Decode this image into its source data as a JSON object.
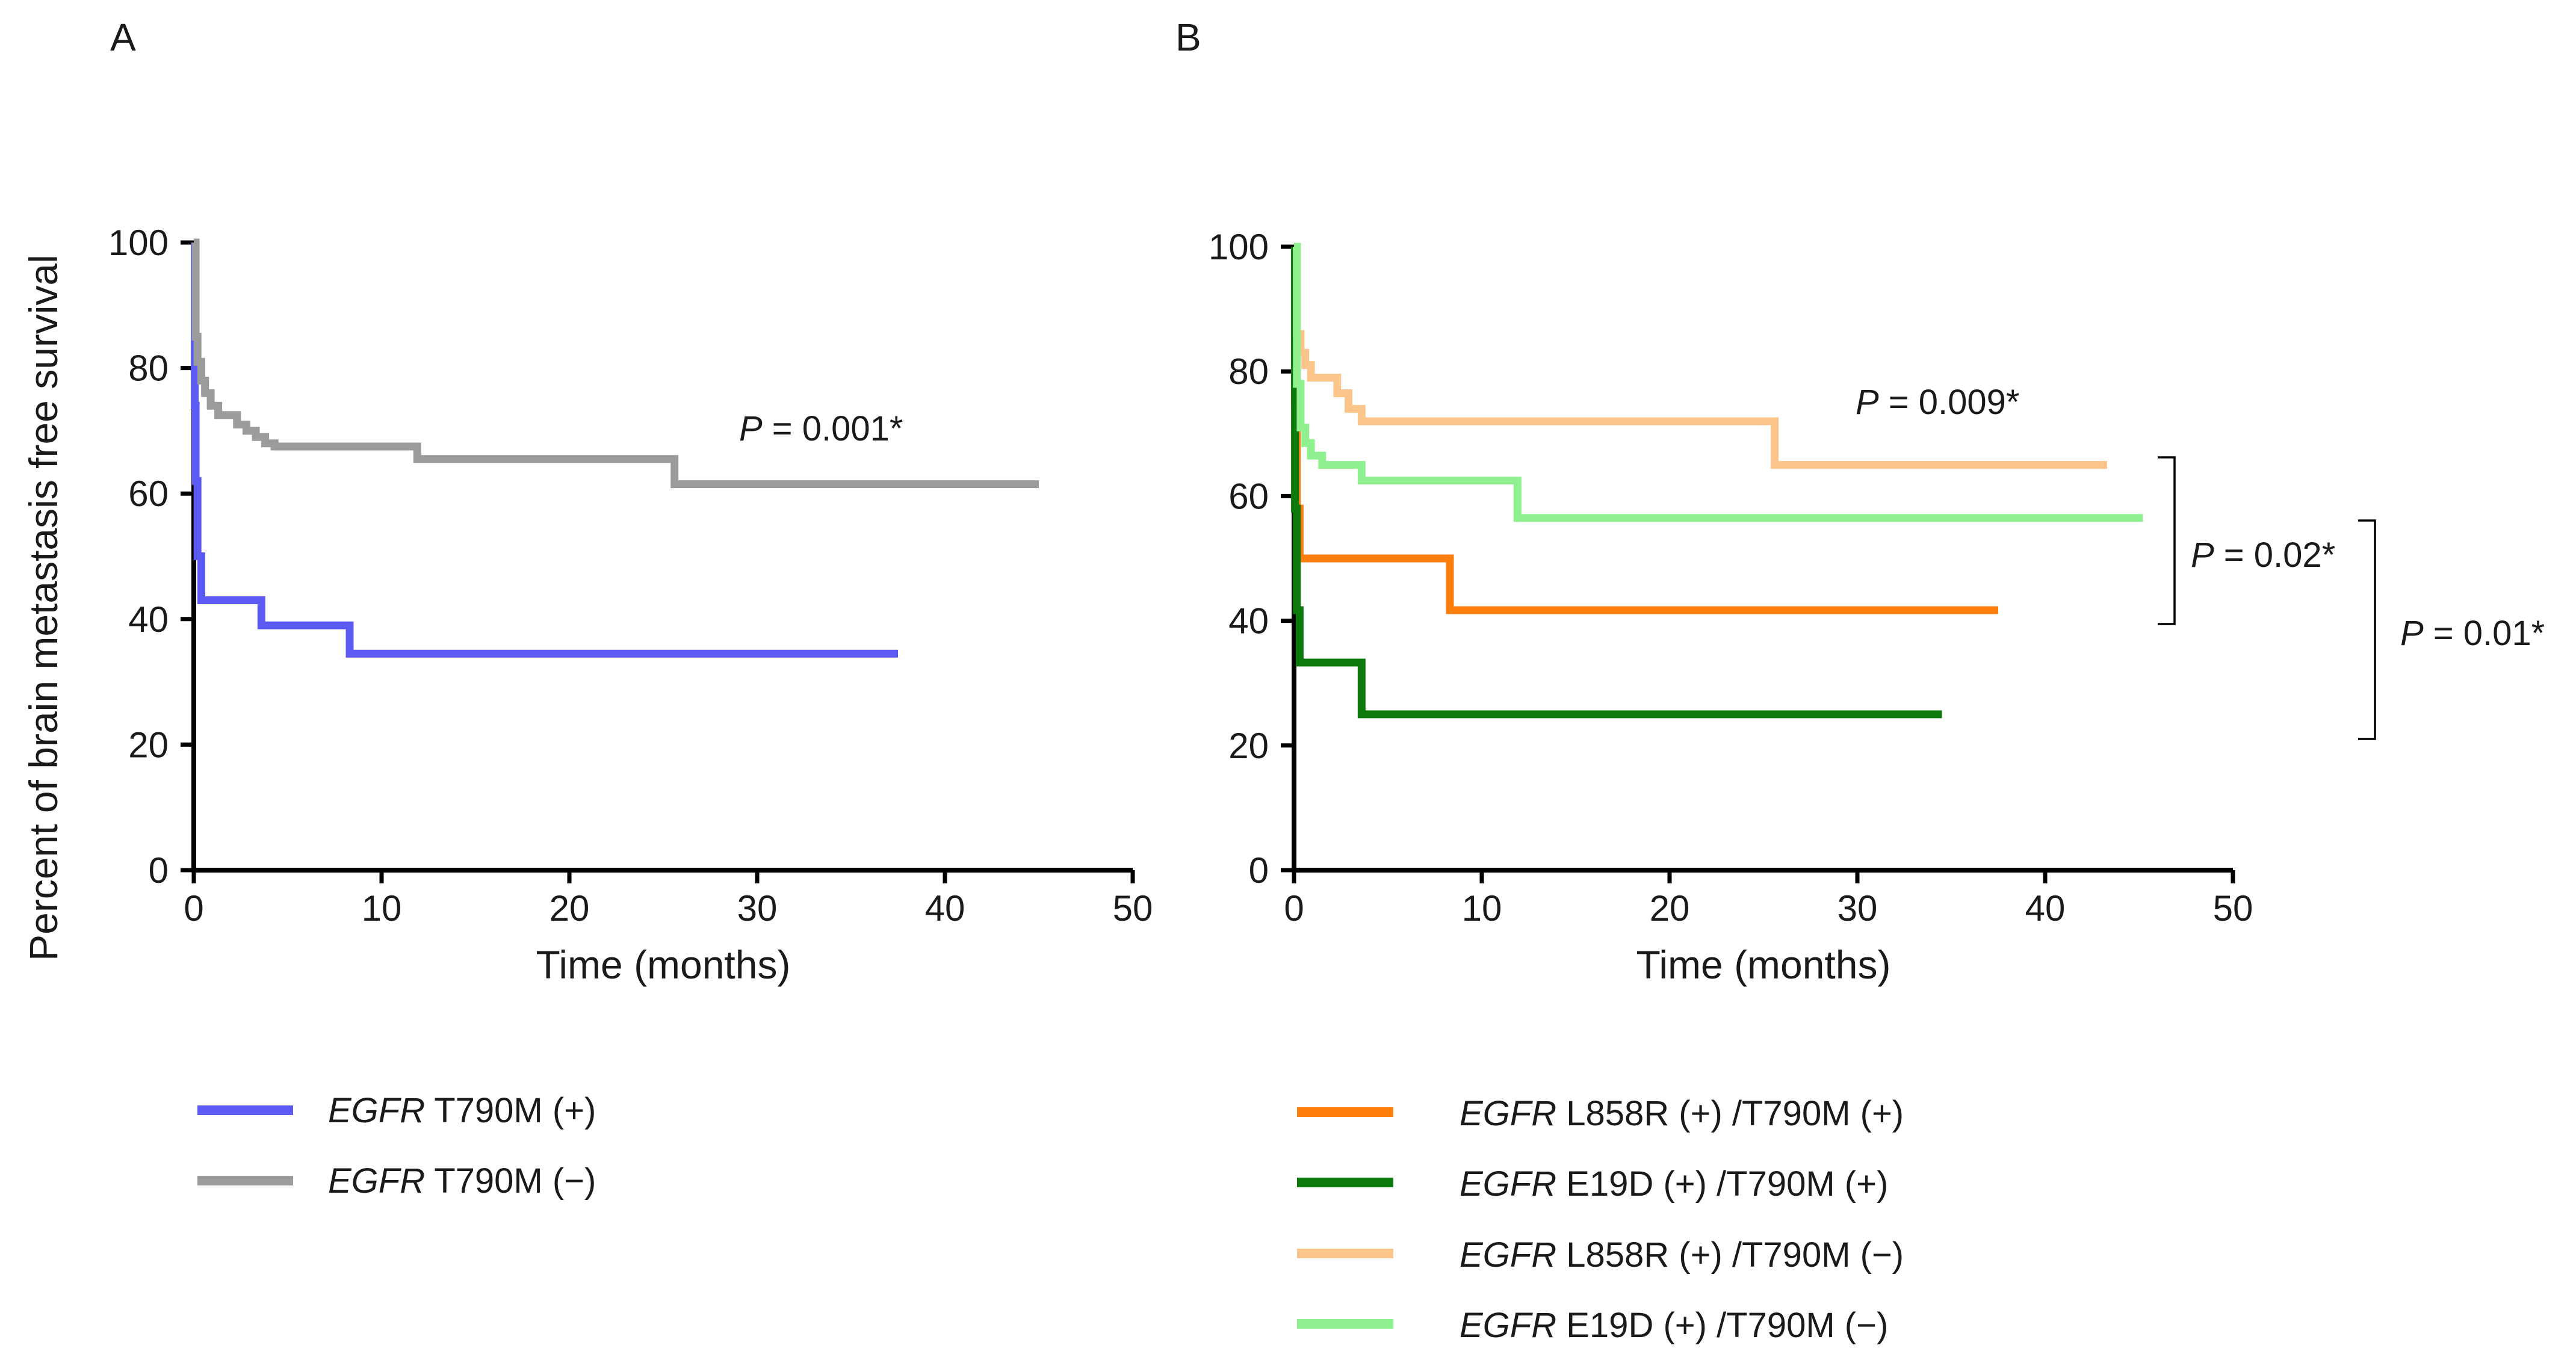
{
  "figure": {
    "panels": [
      {
        "panel_label": "A",
        "ylabel": "Percent of brain metastasis free survival",
        "p_label": {
          "prefix": "P",
          "value": " = 0.001*"
        },
        "brackets": [],
        "legend": [
          {
            "italic": "EGFR",
            "rest": " T790M  (+)",
            "color": "#5b5bf3"
          },
          {
            "italic": "EGFR",
            "rest": " T790M  (−)",
            "color": "#9b9b9b"
          }
        ]
      },
      {
        "panel_label": "B",
        "ylabel": "",
        "p_label": {
          "prefix": "P",
          "value": " = 0.009*"
        },
        "brackets": [
          {
            "prefix": "P",
            "value": " = 0.02*",
            "y_top": 65,
            "y_bottom": 40
          },
          {
            "prefix": "P",
            "value": " = 0.01*",
            "y_top": 56,
            "y_bottom": 21
          }
        ],
        "legend": [
          {
            "italic": "EGFR",
            "rest": " L858R  (+) /T790M  (+)",
            "color": "#ff7f0e"
          },
          {
            "italic": "EGFR",
            "rest": " E19D  (+) /T790M  (+)",
            "color": "#0b7a0b"
          },
          {
            "italic": "EGFR",
            "rest": " L858R  (+) /T790M  (−)",
            "color": "#fbc58b"
          },
          {
            "italic": "EGFR",
            "rest": " E19D  (+) /T790M  (−)",
            "color": "#8ff08f"
          }
        ]
      }
    ]
  },
  "chart_data": [
    {
      "type": "line",
      "step": true,
      "title": "",
      "xlabel": "Time (months)",
      "ylabel": "Percent of brain metastasis free survival",
      "xlim": [
        0,
        50
      ],
      "ylim": [
        0,
        100
      ],
      "xticks": [
        0,
        10,
        20,
        30,
        40,
        50
      ],
      "yticks": [
        0,
        20,
        40,
        60,
        80,
        100
      ],
      "grid": false,
      "legend_position": "bottom",
      "series": [
        {
          "name": "EGFR T790M (+)",
          "color": "#5b5bf3",
          "points": [
            [
              0,
              100
            ],
            [
              0.05,
              74
            ],
            [
              0.1,
              62
            ],
            [
              0.2,
              50
            ],
            [
              0.4,
              43
            ],
            [
              3.6,
              43
            ],
            [
              3.6,
              39
            ],
            [
              8.3,
              39
            ],
            [
              8.3,
              34.5
            ],
            [
              37.5,
              34.5
            ]
          ]
        },
        {
          "name": "EGFR T790M (−)",
          "color": "#9b9b9b",
          "points": [
            [
              0,
              100
            ],
            [
              0.1,
              85
            ],
            [
              0.2,
              81
            ],
            [
              0.4,
              78
            ],
            [
              0.6,
              76
            ],
            [
              0.9,
              74
            ],
            [
              1.3,
              72.5
            ],
            [
              2.3,
              71
            ],
            [
              2.8,
              70
            ],
            [
              3.3,
              69
            ],
            [
              3.8,
              68
            ],
            [
              4.3,
              67.5
            ],
            [
              11.9,
              67.5
            ],
            [
              11.9,
              65.5
            ],
            [
              25.6,
              65.5
            ],
            [
              25.6,
              61.5
            ],
            [
              45,
              61.5
            ]
          ]
        }
      ]
    },
    {
      "type": "line",
      "step": true,
      "title": "",
      "xlabel": "Time (months)",
      "ylabel": "",
      "xlim": [
        0,
        50
      ],
      "ylim": [
        0,
        100
      ],
      "xticks": [
        0,
        10,
        20,
        30,
        40,
        50
      ],
      "yticks": [
        0,
        20,
        40,
        60,
        80,
        100
      ],
      "grid": false,
      "legend_position": "bottom",
      "series": [
        {
          "name": "EGFR L858R (+)/T790M (+)",
          "color": "#ff7f0e",
          "points": [
            [
              0,
              100
            ],
            [
              0.05,
              75
            ],
            [
              0.15,
              58
            ],
            [
              0.3,
              50
            ],
            [
              8.3,
              50
            ],
            [
              8.3,
              41.7
            ],
            [
              37.5,
              41.7
            ]
          ]
        },
        {
          "name": "EGFR E19D (+)/T790M (+)",
          "color": "#0b7a0b",
          "points": [
            [
              0,
              100
            ],
            [
              0.05,
              58
            ],
            [
              0.15,
              41.7
            ],
            [
              0.3,
              33.3
            ],
            [
              3.6,
              33.3
            ],
            [
              3.6,
              25
            ],
            [
              34.5,
              25
            ]
          ]
        },
        {
          "name": "EGFR L858R (+)/T790M (−)",
          "color": "#fbc58b",
          "points": [
            [
              0,
              100
            ],
            [
              0.15,
              86
            ],
            [
              0.35,
              83
            ],
            [
              0.6,
              81
            ],
            [
              0.9,
              79
            ],
            [
              2.3,
              76.5
            ],
            [
              2.9,
              74
            ],
            [
              3.6,
              72
            ],
            [
              25.6,
              72
            ],
            [
              25.6,
              65
            ],
            [
              43.3,
              65
            ]
          ]
        },
        {
          "name": "EGFR E19D (+)/T790M (−)",
          "color": "#8ff08f",
          "points": [
            [
              0,
              100
            ],
            [
              0.15,
              78
            ],
            [
              0.35,
              71
            ],
            [
              0.6,
              68.5
            ],
            [
              0.9,
              66.5
            ],
            [
              1.5,
              65
            ],
            [
              3.6,
              62.5
            ],
            [
              11.9,
              62.5
            ],
            [
              11.9,
              56.5
            ],
            [
              45.2,
              56.5
            ]
          ]
        }
      ]
    }
  ]
}
